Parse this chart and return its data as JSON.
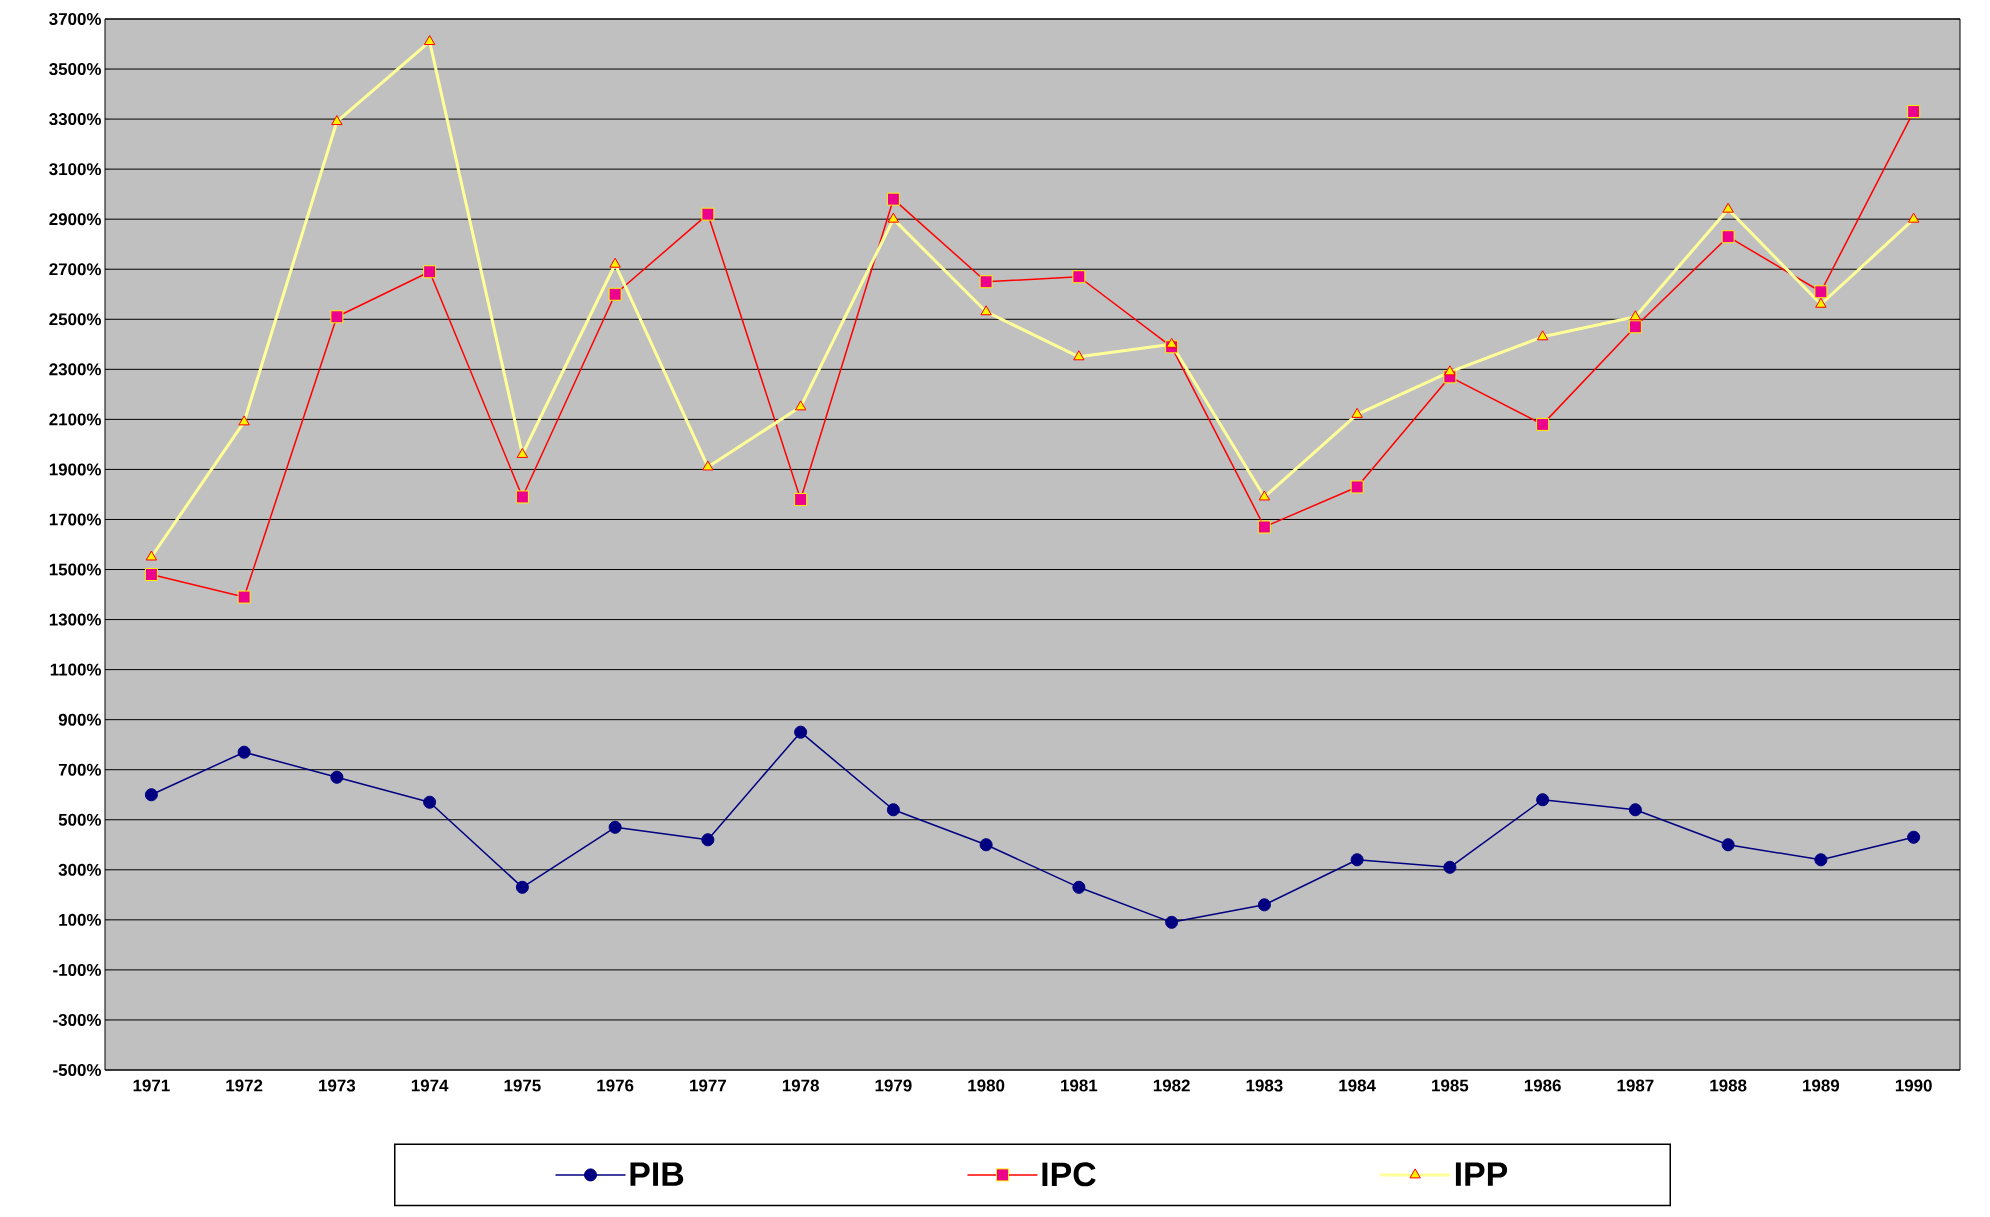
{
  "chart_data": {
    "type": "line",
    "categories": [
      "1971",
      "1972",
      "1973",
      "1974",
      "1975",
      "1976",
      "1977",
      "1978",
      "1979",
      "1980",
      "1981",
      "1982",
      "1983",
      "1984",
      "1985",
      "1986",
      "1987",
      "1988",
      "1989",
      "1990"
    ],
    "series": [
      {
        "name": "PIB",
        "color": "#000080",
        "marker": "circle",
        "values": [
          600,
          770,
          670,
          570,
          230,
          470,
          420,
          850,
          540,
          400,
          230,
          90,
          160,
          340,
          310,
          580,
          540,
          400,
          340,
          430
        ]
      },
      {
        "name": "IPC",
        "color": "#ff0000",
        "marker": "square",
        "values": [
          1480,
          1390,
          2510,
          2690,
          1790,
          2600,
          2920,
          1780,
          2980,
          2650,
          2670,
          2390,
          1670,
          1830,
          2270,
          2080,
          2470,
          2830,
          2610,
          3330
        ]
      },
      {
        "name": "IPP",
        "color": "#ffff99",
        "marker": "triangle",
        "values": [
          1550,
          2090,
          3290,
          3610,
          1960,
          2720,
          1910,
          2150,
          2900,
          2530,
          2350,
          2400,
          1790,
          2120,
          2290,
          2430,
          2510,
          2940,
          2560,
          2900
        ]
      }
    ],
    "ylim": [
      -500,
      3700
    ],
    "yticks": [
      {
        "value": -500,
        "label": "-500%"
      },
      {
        "value": -300,
        "label": "-300%"
      },
      {
        "value": -100,
        "label": "-100%"
      },
      {
        "value": 100,
        "label": "100%"
      },
      {
        "value": 300,
        "label": "300%"
      },
      {
        "value": 500,
        "label": "500%"
      },
      {
        "value": 700,
        "label": "700%"
      },
      {
        "value": 900,
        "label": "900%"
      },
      {
        "value": 1100,
        "label": "1100%"
      },
      {
        "value": 1300,
        "label": "1300%"
      },
      {
        "value": 1500,
        "label": "1500%"
      },
      {
        "value": 1700,
        "label": "1700%"
      },
      {
        "value": 1900,
        "label": "1900%"
      },
      {
        "value": 2100,
        "label": "2100%"
      },
      {
        "value": 2300,
        "label": "2300%"
      },
      {
        "value": 2500,
        "label": "2500%"
      },
      {
        "value": 2700,
        "label": "2700%"
      },
      {
        "value": 2900,
        "label": "2900%"
      },
      {
        "value": 3100,
        "label": "3100%"
      },
      {
        "value": 3300,
        "label": "3300%"
      },
      {
        "value": 3500,
        "label": "3500%"
      },
      {
        "value": 3700,
        "label": "3700%"
      }
    ],
    "grid": "y",
    "legend": "bottom"
  }
}
